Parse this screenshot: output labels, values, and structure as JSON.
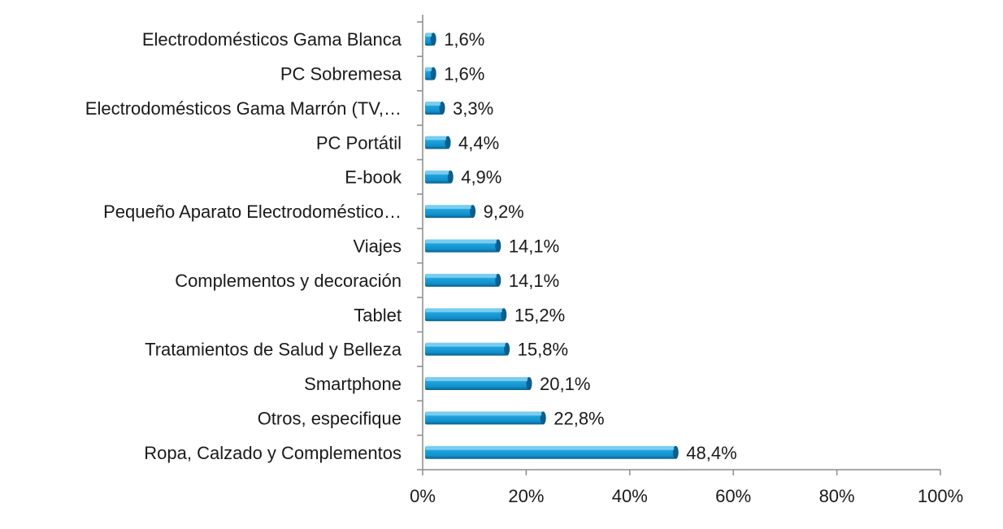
{
  "chart_data": {
    "type": "bar",
    "orientation": "horizontal",
    "bar_style": "3d-cylinder",
    "categories": [
      "Electrodomésticos Gama Blanca",
      "PC Sobremesa",
      "Electrodomésticos Gama Marrón (TV,…",
      "PC Portátil",
      "E-book",
      "Pequeño Aparato Electrodoméstico…",
      "Viajes",
      "Complementos y decoración",
      "Tablet",
      "Tratamientos de Salud y Belleza",
      "Smartphone",
      "Otros, especifique",
      "Ropa, Calzado y Complementos"
    ],
    "values": [
      1.6,
      1.6,
      3.3,
      4.4,
      4.9,
      9.2,
      14.1,
      14.1,
      15.2,
      15.8,
      20.1,
      22.8,
      48.4
    ],
    "data_labels": [
      "1,6%",
      "1,6%",
      "3,3%",
      "4,4%",
      "4,9%",
      "9,2%",
      "14,1%",
      "14,1%",
      "15,2%",
      "15,8%",
      "20,1%",
      "22,8%",
      "48,4%"
    ],
    "xlim": [
      0,
      100
    ],
    "x_ticks": [
      0,
      20,
      40,
      60,
      80,
      100
    ],
    "x_tick_labels": [
      "0%",
      "20%",
      "40%",
      "60%",
      "80%",
      "100%"
    ],
    "grid": false,
    "legend": "none",
    "bar_color": "#1fa3dc",
    "bar_color_dark": "#0a5f8c",
    "bar_color_light": "#8fd6f5"
  }
}
